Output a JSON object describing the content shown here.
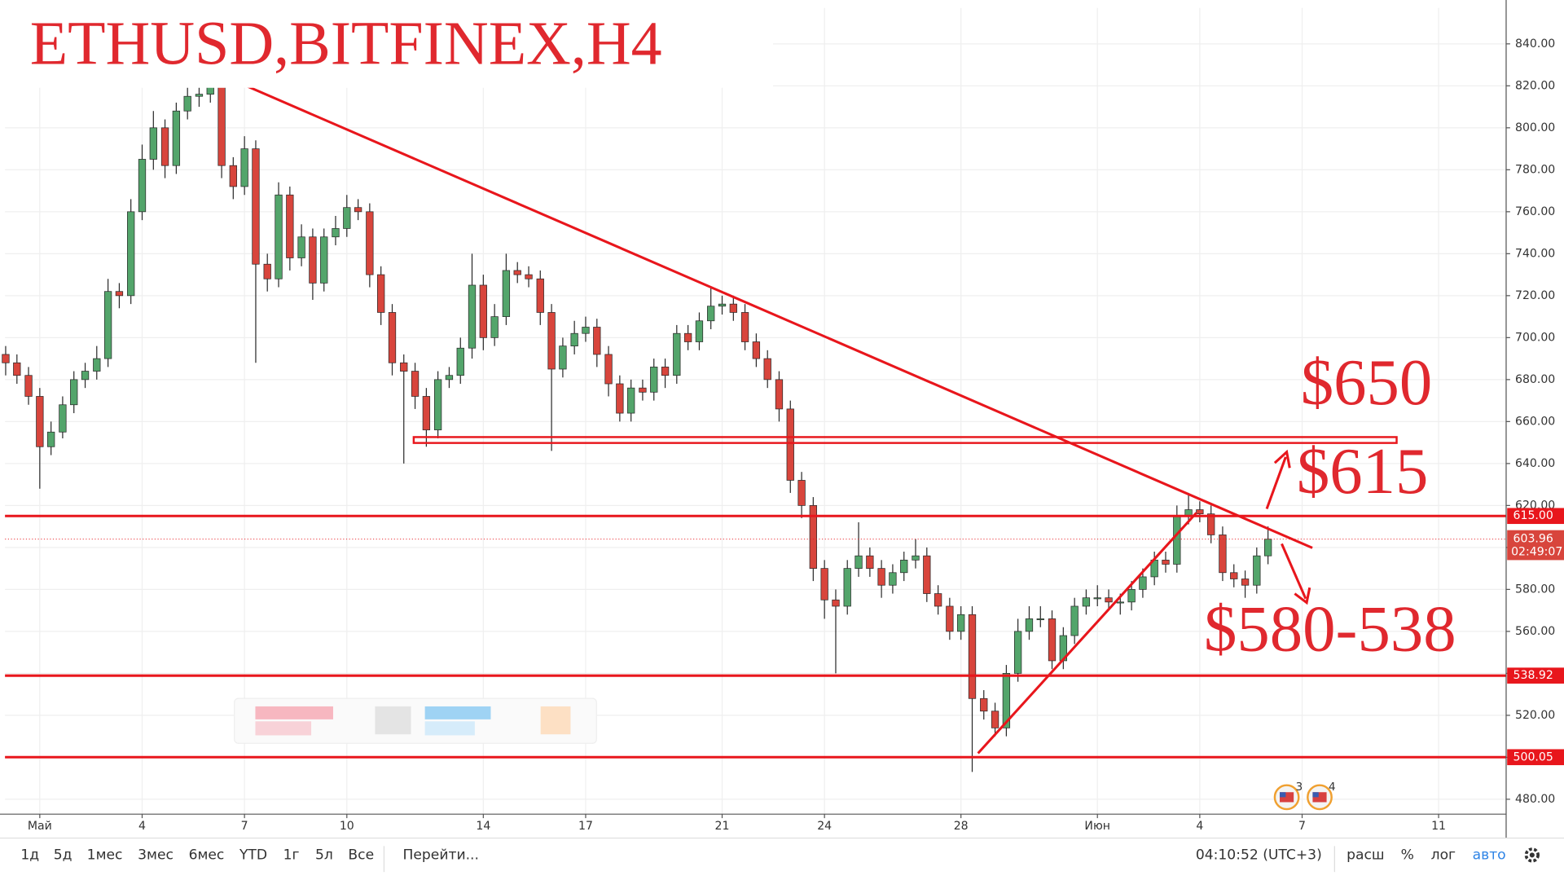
{
  "chart_data": {
    "type": "candlestick",
    "title": "ETHUSD,BITFINEX,H4",
    "annotations": [
      "$650",
      "$615",
      "$580-538"
    ],
    "up_color": "#53a56b",
    "down_color": "#d8453c",
    "wick_color": "#2a2a2a",
    "line_color": "#e8161c",
    "x": [
      -1,
      -0.67,
      -0.33,
      0,
      0.33,
      0.67,
      1,
      1.33,
      1.67,
      2,
      2.33,
      2.67,
      3,
      3.33,
      3.67,
      4,
      4.33,
      4.67,
      5,
      5.33,
      5.67,
      6,
      6.33,
      6.67,
      7,
      7.33,
      7.67,
      8,
      8.33,
      8.67,
      9,
      9.33,
      9.67,
      10,
      10.33,
      10.67,
      11,
      11.33,
      11.67,
      12,
      12.33,
      12.67,
      13,
      13.33,
      13.67,
      14,
      14.33,
      14.67,
      15,
      15.33,
      15.67,
      16,
      16.33,
      16.67,
      17,
      17.33,
      17.67,
      18,
      18.33,
      18.67,
      19,
      19.33,
      19.67,
      20,
      20.33,
      20.67,
      21,
      21.33,
      21.67,
      22,
      22.33,
      22.67,
      23,
      23.33,
      23.67,
      24,
      24.33,
      24.67,
      25,
      25.33,
      25.67,
      26,
      26.33,
      26.67,
      27,
      27.33,
      27.67,
      28,
      28.33,
      28.67,
      29,
      29.33,
      29.67,
      30,
      30.33,
      30.67,
      31,
      31.33,
      31.67,
      32,
      32.33,
      32.67,
      33,
      33.33,
      33.67,
      34,
      34.33,
      34.67,
      35,
      35.33,
      35.67,
      36
    ],
    "candles": [
      [
        692,
        696,
        682,
        688
      ],
      [
        688,
        692,
        678,
        682
      ],
      [
        682,
        686,
        668,
        672
      ],
      [
        672,
        676,
        628,
        648
      ],
      [
        648,
        660,
        644,
        655
      ],
      [
        655,
        672,
        652,
        668
      ],
      [
        668,
        684,
        664,
        680
      ],
      [
        680,
        688,
        676,
        684
      ],
      [
        684,
        696,
        680,
        690
      ],
      [
        690,
        728,
        686,
        722
      ],
      [
        722,
        726,
        714,
        720
      ],
      [
        720,
        766,
        716,
        760
      ],
      [
        760,
        792,
        756,
        785
      ],
      [
        785,
        808,
        780,
        800
      ],
      [
        800,
        804,
        776,
        782
      ],
      [
        782,
        812,
        778,
        808
      ],
      [
        808,
        820,
        804,
        815
      ],
      [
        815,
        822,
        810,
        816
      ],
      [
        816,
        830,
        812,
        822
      ],
      [
        822,
        826,
        776,
        782
      ],
      [
        782,
        786,
        766,
        772
      ],
      [
        772,
        796,
        768,
        790
      ],
      [
        790,
        794,
        688,
        735
      ],
      [
        735,
        740,
        722,
        728
      ],
      [
        728,
        774,
        724,
        768
      ],
      [
        768,
        772,
        732,
        738
      ],
      [
        738,
        754,
        734,
        748
      ],
      [
        748,
        752,
        718,
        726
      ],
      [
        726,
        752,
        722,
        748
      ],
      [
        748,
        758,
        744,
        752
      ],
      [
        752,
        768,
        748,
        762
      ],
      [
        762,
        766,
        756,
        760
      ],
      [
        760,
        764,
        724,
        730
      ],
      [
        730,
        734,
        706,
        712
      ],
      [
        712,
        716,
        682,
        688
      ],
      [
        688,
        692,
        640,
        684
      ],
      [
        684,
        688,
        666,
        672
      ],
      [
        672,
        676,
        648,
        656
      ],
      [
        656,
        684,
        652,
        680
      ],
      [
        680,
        686,
        676,
        682
      ],
      [
        682,
        700,
        678,
        695
      ],
      [
        695,
        740,
        690,
        725
      ],
      [
        725,
        730,
        694,
        700
      ],
      [
        700,
        716,
        696,
        710
      ],
      [
        710,
        740,
        706,
        732
      ],
      [
        732,
        736,
        726,
        730
      ],
      [
        730,
        734,
        724,
        728
      ],
      [
        728,
        732,
        706,
        712
      ],
      [
        712,
        716,
        646,
        685
      ],
      [
        685,
        700,
        681,
        696
      ],
      [
        696,
        708,
        692,
        702
      ],
      [
        702,
        710,
        698,
        705
      ],
      [
        705,
        709,
        686,
        692
      ],
      [
        692,
        696,
        672,
        678
      ],
      [
        678,
        682,
        660,
        664
      ],
      [
        664,
        680,
        660,
        676
      ],
      [
        676,
        680,
        670,
        674
      ],
      [
        674,
        690,
        670,
        686
      ],
      [
        686,
        690,
        676,
        682
      ],
      [
        682,
        706,
        678,
        702
      ],
      [
        702,
        706,
        694,
        698
      ],
      [
        698,
        712,
        694,
        708
      ],
      [
        708,
        724,
        704,
        715
      ],
      [
        715,
        720,
        711,
        716
      ],
      [
        716,
        720,
        708,
        712
      ],
      [
        712,
        716,
        694,
        698
      ],
      [
        698,
        702,
        686,
        690
      ],
      [
        690,
        694,
        676,
        680
      ],
      [
        680,
        684,
        660,
        666
      ],
      [
        666,
        670,
        626,
        632
      ],
      [
        632,
        636,
        614,
        620
      ],
      [
        620,
        624,
        584,
        590
      ],
      [
        590,
        594,
        566,
        575
      ],
      [
        575,
        580,
        540,
        572
      ],
      [
        572,
        594,
        568,
        590
      ],
      [
        590,
        612,
        586,
        596
      ],
      [
        596,
        600,
        586,
        590
      ],
      [
        590,
        594,
        576,
        582
      ],
      [
        582,
        592,
        578,
        588
      ],
      [
        588,
        598,
        584,
        594
      ],
      [
        594,
        604,
        590,
        596
      ],
      [
        596,
        600,
        574,
        578
      ],
      [
        578,
        582,
        568,
        572
      ],
      [
        572,
        576,
        556,
        560
      ],
      [
        560,
        572,
        556,
        568
      ],
      [
        568,
        572,
        493,
        528
      ],
      [
        528,
        532,
        518,
        522
      ],
      [
        522,
        526,
        510,
        514
      ],
      [
        514,
        544,
        510,
        540
      ],
      [
        540,
        566,
        536,
        560
      ],
      [
        560,
        572,
        556,
        566
      ],
      [
        566,
        572,
        562,
        566
      ],
      [
        566,
        570,
        542,
        546
      ],
      [
        546,
        562,
        542,
        558
      ],
      [
        558,
        576,
        554,
        572
      ],
      [
        572,
        580,
        568,
        576
      ],
      [
        576,
        582,
        572,
        576
      ],
      [
        576,
        580,
        570,
        574
      ],
      [
        574,
        578,
        568,
        574
      ],
      [
        574,
        584,
        570,
        580
      ],
      [
        580,
        590,
        576,
        586
      ],
      [
        586,
        598,
        582,
        594
      ],
      [
        594,
        598,
        588,
        592
      ],
      [
        592,
        620,
        588,
        615
      ],
      [
        615,
        626,
        611,
        618
      ],
      [
        618,
        622,
        612,
        616
      ],
      [
        616,
        620,
        602,
        606
      ],
      [
        606,
        610,
        584,
        588
      ],
      [
        588,
        592,
        581,
        585
      ],
      [
        585,
        589,
        576,
        582
      ],
      [
        582,
        600,
        578,
        596
      ],
      [
        596,
        610,
        592,
        603.96
      ]
    ],
    "xlim": [
      -1.02,
      42.98
    ],
    "xticks": [
      {
        "value": 0,
        "label": "Май"
      },
      {
        "value": 3,
        "label": "4"
      },
      {
        "value": 6,
        "label": "7"
      },
      {
        "value": 9,
        "label": "10"
      },
      {
        "value": 13,
        "label": "14"
      },
      {
        "value": 16,
        "label": "17"
      },
      {
        "value": 20,
        "label": "21"
      },
      {
        "value": 23,
        "label": "24"
      },
      {
        "value": 27,
        "label": "28"
      },
      {
        "value": 31,
        "label": "Июн"
      },
      {
        "value": 34,
        "label": "4"
      },
      {
        "value": 37,
        "label": "7"
      },
      {
        "value": 41,
        "label": "11"
      }
    ],
    "ylim": [
      472.9,
      857.1
    ],
    "yticks": [
      {
        "value": 480,
        "label": "480.00"
      },
      {
        "value": 500,
        "label": "500.00"
      },
      {
        "value": 520,
        "label": "520.00"
      },
      {
        "value": 540,
        "label": "540.00"
      },
      {
        "value": 560,
        "label": "560.00"
      },
      {
        "value": 580,
        "label": "580.00"
      },
      {
        "value": 600,
        "label": "600.00"
      },
      {
        "value": 620,
        "label": "620.00"
      },
      {
        "value": 640,
        "label": "640.00"
      },
      {
        "value": 660,
        "label": "660.00"
      },
      {
        "value": 680,
        "label": "680.00"
      },
      {
        "value": 700,
        "label": "700.00"
      },
      {
        "value": 720,
        "label": "720.00"
      },
      {
        "value": 740,
        "label": "740.00"
      },
      {
        "value": 760,
        "label": "760.00"
      },
      {
        "value": 780,
        "label": "780.00"
      },
      {
        "value": 800,
        "label": "800.00"
      },
      {
        "value": 820,
        "label": "820.00"
      },
      {
        "value": 840,
        "label": "840.00"
      }
    ],
    "grid": true,
    "levels": [
      {
        "value": 615,
        "label": "615.00"
      },
      {
        "value": 538.92,
        "label": "538.92"
      },
      {
        "value": 500.05,
        "label": "500.05"
      }
    ],
    "last_price": {
      "value": 603.96,
      "label": "603.96"
    },
    "countdown": "02:49:07",
    "zone": {
      "x": [
        10.96,
        39.77
      ],
      "y": [
        649.8,
        652.6
      ]
    },
    "trendlines": [
      {
        "x": [
          4.97,
          37.3
        ],
        "y": [
          827.6,
          599.8
        ]
      },
      {
        "x": [
          27.5,
          33.9
        ],
        "y": [
          501.9,
          616.5
        ]
      }
    ],
    "events": [
      "3",
      "4"
    ],
    "toolbar": {
      "ranges": [
        "1д",
        "5д",
        "1мес",
        "3мес",
        "6мес",
        "YTD",
        "1г",
        "5л",
        "Все"
      ],
      "goto": "Перейти...",
      "time": "04:10:52 (UTC+3)",
      "options": [
        "расш",
        "%",
        "лог",
        "авто"
      ]
    }
  }
}
